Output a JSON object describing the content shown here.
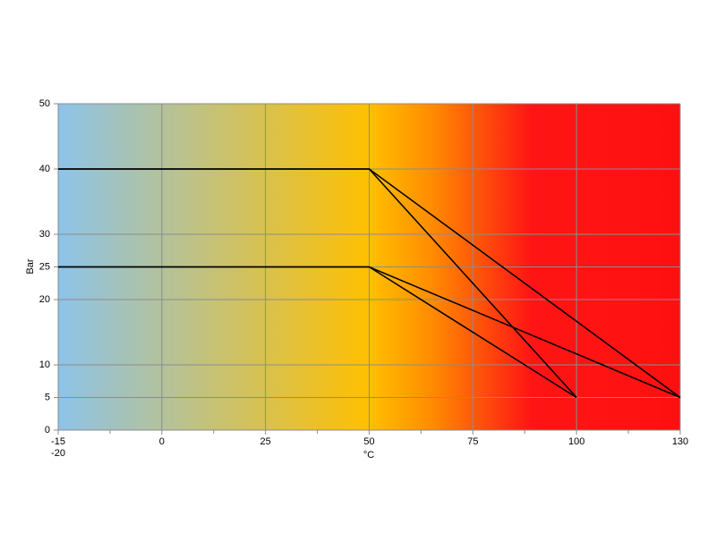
{
  "chart_data": {
    "type": "line",
    "xlabel": "°C",
    "ylabel": "Bar",
    "categories": [
      [
        "-15",
        "-20"
      ],
      "0",
      "25",
      "50",
      "75",
      "100",
      "130"
    ],
    "series": [
      {
        "color": "#000000",
        "x": [
          "-15",
          "50",
          "100"
        ],
        "values": [
          40,
          40,
          5
        ]
      },
      {
        "color": "#000000",
        "x": [
          "-15",
          "50",
          "130"
        ],
        "values": [
          40,
          40,
          5
        ]
      },
      {
        "color": "#000000",
        "x": [
          "-15",
          "50",
          "100"
        ],
        "values": [
          25,
          25,
          5
        ]
      },
      {
        "color": "#000000",
        "x": [
          "-15",
          "50",
          "130"
        ],
        "values": [
          25,
          25,
          5
        ]
      }
    ],
    "ylim": [
      0,
      50
    ],
    "yticks": [
      0,
      5,
      10,
      20,
      25,
      30,
      40,
      50
    ],
    "grid": true
  }
}
